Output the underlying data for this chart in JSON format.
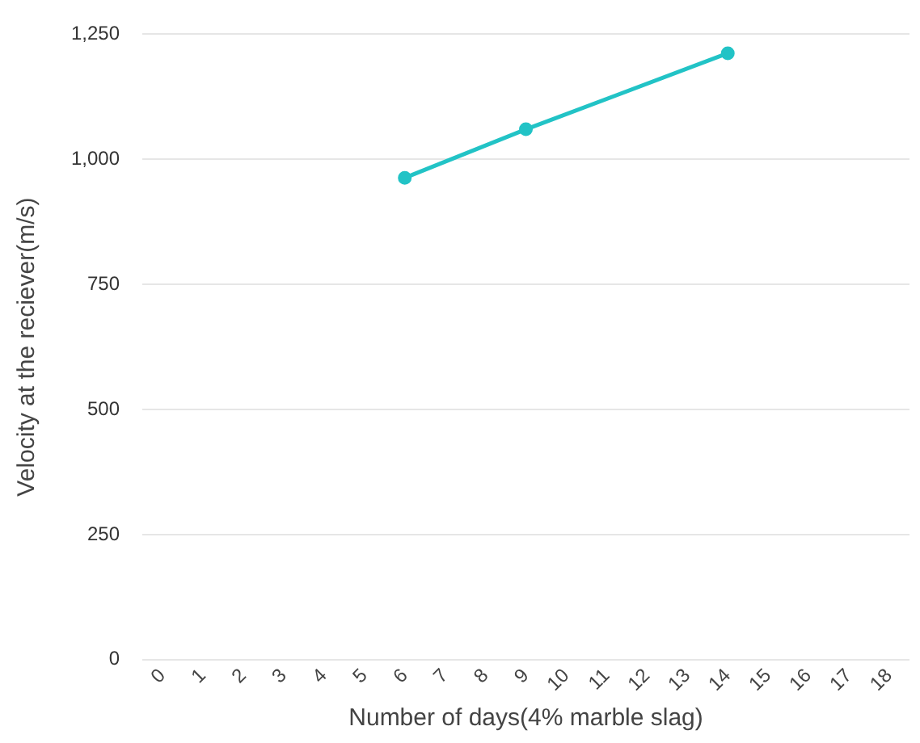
{
  "chart_data": {
    "type": "line",
    "xlabel": "Number of days(4% marble slag)",
    "ylabel": "Velocity at the reciever(m/s)",
    "x": [
      6,
      9,
      14
    ],
    "series": [
      {
        "color": "#22c3c6",
        "values": [
          963,
          1060,
          1212
        ]
      }
    ],
    "xlim": [
      -0.5,
      18.5
    ],
    "xticks": [
      0,
      1,
      2,
      3,
      4,
      5,
      6,
      7,
      8,
      9,
      10,
      11,
      12,
      13,
      14,
      15,
      16,
      17,
      18
    ],
    "ylim": [
      0,
      1250
    ],
    "yticks": [
      {
        "value": 0,
        "label": "0"
      },
      {
        "value": 250,
        "label": "250"
      },
      {
        "value": 500,
        "label": "500"
      },
      {
        "value": 750,
        "label": "750"
      },
      {
        "value": 1000,
        "label": "1,000"
      },
      {
        "value": 1250,
        "label": "1,250"
      }
    ],
    "grid": "y",
    "marker": "circle",
    "line_style": "solid",
    "legend": false
  }
}
